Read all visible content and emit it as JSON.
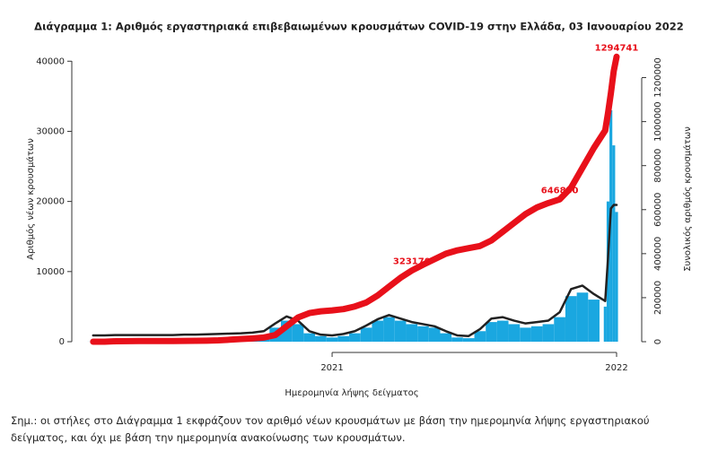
{
  "chart_data": {
    "type": "bar",
    "title": "Διάγραμμα 1: Αριθμός εργαστηριακά επιβεβαιωμένων κρουσμάτων COVID-19 στην Ελλάδα, 03 Ιανουαρίου 2022",
    "x_label": "Ημερομηνία λήψης δείγματος",
    "y_label": "Αριθμός νέων κρουσμάτων",
    "y2_label": "Συνολικός αριθμός κρουσμάτων",
    "x": [
      2020.16,
      2020.2,
      2020.24,
      2020.28,
      2020.32,
      2020.36,
      2020.4,
      2020.44,
      2020.48,
      2020.52,
      2020.56,
      2020.6,
      2020.64,
      2020.68,
      2020.72,
      2020.76,
      2020.8,
      2020.84,
      2020.88,
      2020.92,
      2020.96,
      2021.0,
      2021.04,
      2021.08,
      2021.12,
      2021.16,
      2021.2,
      2021.24,
      2021.28,
      2021.32,
      2021.36,
      2021.4,
      2021.44,
      2021.48,
      2021.52,
      2021.56,
      2021.6,
      2021.64,
      2021.68,
      2021.72,
      2021.76,
      2021.8,
      2021.84,
      2021.88,
      2021.92,
      2021.96,
      2021.97,
      2021.98,
      2021.99,
      2022.0
    ],
    "xlim": [
      2020.148,
      2022.041
    ],
    "xticks": [
      2021,
      2022
    ],
    "ylim": [
      0,
      40800
    ],
    "yticks": [
      0,
      10000,
      20000,
      30000,
      40000
    ],
    "y2lim": [
      0,
      1300000
    ],
    "y2ticks": [
      0,
      200000,
      400000,
      600000,
      800000,
      1000000,
      1200000
    ],
    "series": [
      {
        "type": "bar",
        "color": "#1aa7e0",
        "values": [
          10,
          80,
          60,
          20,
          15,
          10,
          20,
          30,
          40,
          60,
          150,
          200,
          250,
          300,
          400,
          800,
          2000,
          3000,
          2500,
          1200,
          800,
          600,
          800,
          1200,
          2000,
          3000,
          3500,
          3000,
          2500,
          2200,
          2000,
          1200,
          600,
          500,
          1500,
          2800,
          3000,
          2500,
          2000,
          2200,
          2500,
          3500,
          6500,
          7000,
          6000,
          5000,
          20000,
          33000,
          28000,
          18500
        ]
      },
      {
        "type": "line",
        "color": "#222222",
        "values": [
          900,
          900,
          950,
          950,
          950,
          950,
          950,
          950,
          1000,
          1000,
          1050,
          1100,
          1150,
          1200,
          1300,
          1500,
          2600,
          3600,
          3000,
          1500,
          1000,
          900,
          1100,
          1500,
          2300,
          3200,
          3800,
          3300,
          2800,
          2500,
          2200,
          1500,
          900,
          800,
          1800,
          3300,
          3500,
          3000,
          2600,
          2800,
          3000,
          4200,
          7500,
          8000,
          6800,
          5800,
          12000,
          19000,
          19500,
          19500
        ]
      },
      {
        "type": "line",
        "axis": "y2",
        "color": "#e8101a",
        "values": [
          0,
          100,
          2000,
          2600,
          2900,
          3000,
          3100,
          3300,
          3500,
          3900,
          4500,
          6000,
          9000,
          12000,
          15000,
          19000,
          30000,
          70000,
          110000,
          130000,
          138000,
          142000,
          148000,
          160000,
          178000,
          210000,
          250000,
          290000,
          323170,
          350000,
          375000,
          400000,
          415000,
          425000,
          435000,
          460000,
          500000,
          540000,
          580000,
          610000,
          630000,
          646830,
          700000,
          790000,
          880000,
          960000,
          1040000,
          1130000,
          1230000,
          1294741
        ],
        "value_labels": [
          null,
          null,
          null,
          null,
          null,
          null,
          null,
          null,
          null,
          null,
          null,
          null,
          null,
          null,
          null,
          null,
          null,
          null,
          null,
          null,
          null,
          null,
          null,
          null,
          null,
          null,
          null,
          null,
          "323170",
          null,
          null,
          null,
          null,
          null,
          null,
          null,
          null,
          null,
          null,
          null,
          null,
          "646830",
          null,
          null,
          null,
          null,
          null,
          null,
          null,
          "1294741"
        ]
      }
    ]
  },
  "note": "Σημ.: οι στήλες στο Διάγραμμα 1 εκφράζουν τον αριθμό νέων κρουσμάτων με βάση την ημερομηνία λήψης εργαστηριακού δείγματος, και όχι με βάση την ημερομηνία ανακοίνωσης των κρουσμάτων."
}
